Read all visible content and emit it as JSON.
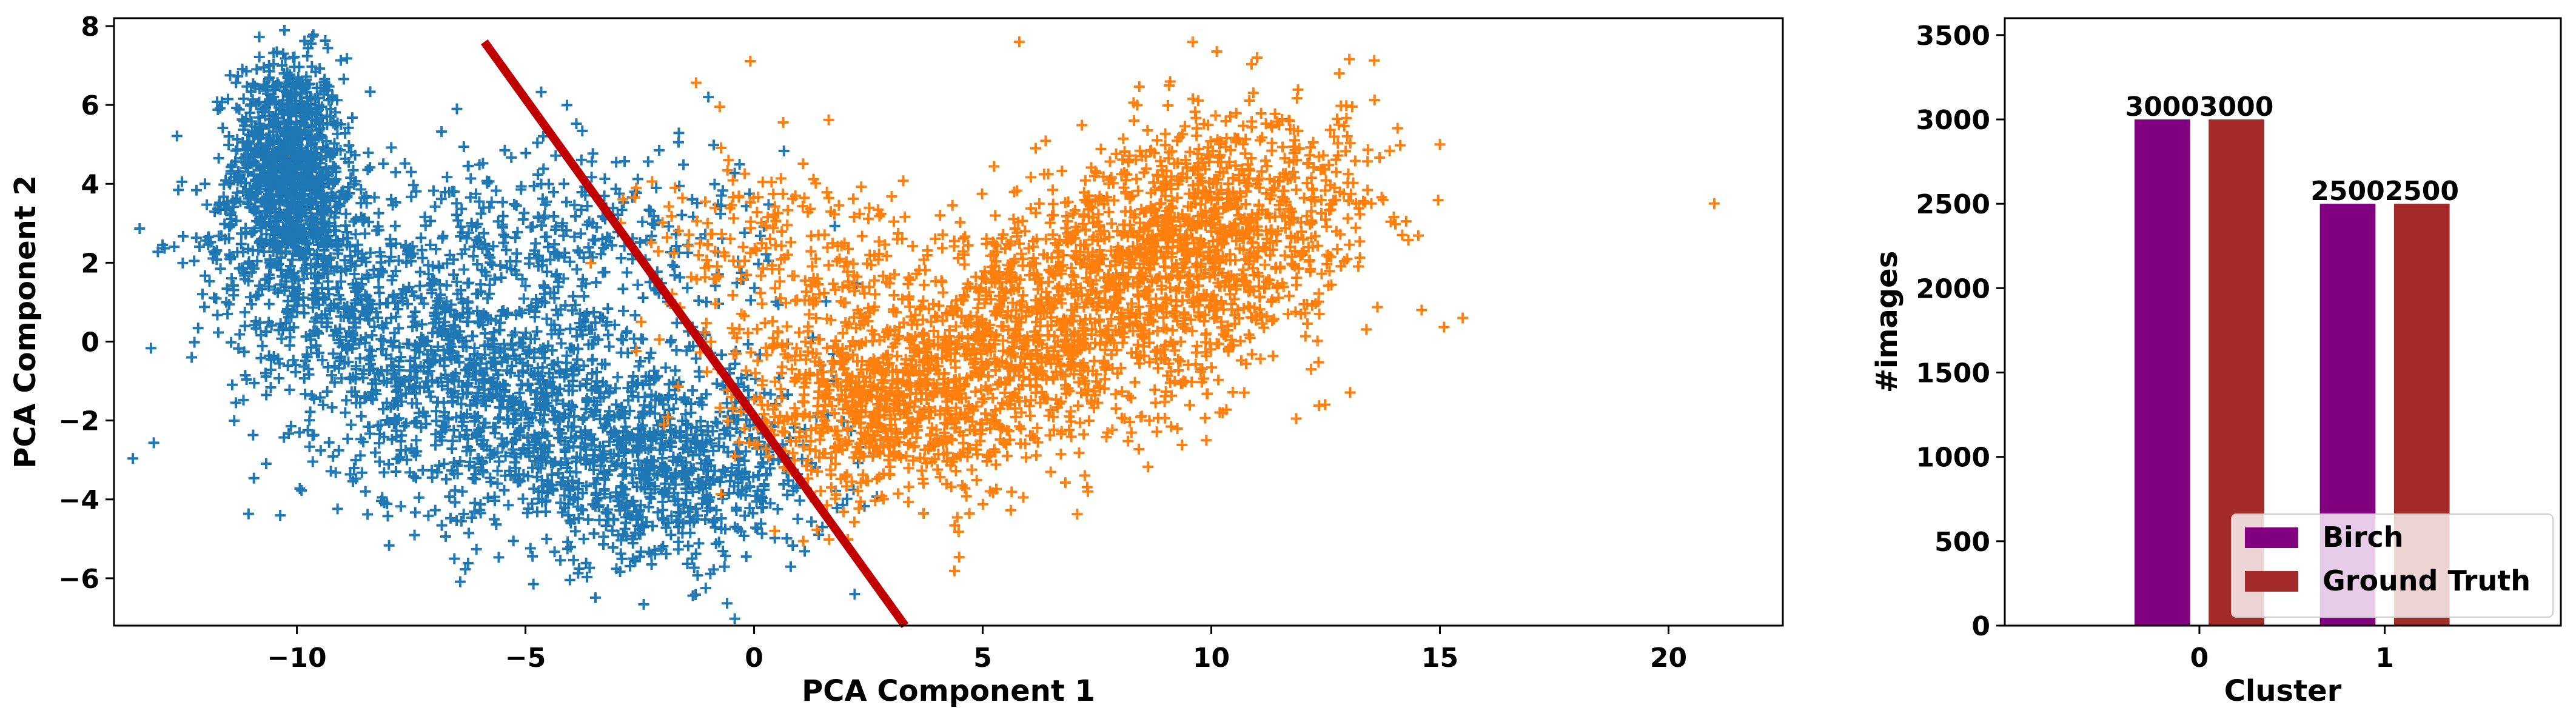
{
  "chart_data": [
    {
      "type": "scatter",
      "title": "",
      "xlabel": "PCA Component 1",
      "ylabel": "PCA Component 2",
      "xlim": [
        -14,
        22.5
      ],
      "ylim": [
        -7.2,
        8.2
      ],
      "xticks": [
        -10,
        -5,
        0,
        5,
        10,
        15,
        20
      ],
      "yticks": [
        -6,
        -4,
        -2,
        0,
        2,
        4,
        6,
        8
      ],
      "grid": false,
      "marker": "+",
      "series": [
        {
          "color": "#1f77b4",
          "clusters": [
            {
              "cx": -10.2,
              "cy": 4.6,
              "sx": 0.6,
              "sy": 1.3,
              "n": 900
            },
            {
              "cx": -10.0,
              "cy": 2.6,
              "sx": 1.1,
              "sy": 1.1,
              "n": 350
            },
            {
              "cx": -7.8,
              "cy": 0.2,
              "sx": 1.8,
              "sy": 1.5,
              "n": 650
            },
            {
              "cx": -5.0,
              "cy": -1.8,
              "sx": 2.0,
              "sy": 1.5,
              "n": 650
            },
            {
              "cx": -2.0,
              "cy": -3.3,
              "sx": 1.8,
              "sy": 1.2,
              "n": 750
            },
            {
              "cx": -4.0,
              "cy": 2.6,
              "sx": 2.2,
              "sy": 1.4,
              "n": 350
            }
          ],
          "outliers": [
            [
              -12.3,
              -0.4
            ],
            [
              -6.5,
              5.9
            ],
            [
              -1.0,
              6.2
            ],
            [
              -10.3,
              7.3
            ],
            [
              -8.5,
              -3.8
            ],
            [
              2.2,
              -6.4
            ]
          ]
        },
        {
          "color": "#ff7f0e",
          "clusters": [
            {
              "cx": 9.3,
              "cy": 2.2,
              "sx": 1.6,
              "sy": 1.4,
              "n": 900
            },
            {
              "cx": 5.8,
              "cy": 0.2,
              "sx": 1.9,
              "sy": 1.6,
              "n": 900
            },
            {
              "cx": 2.8,
              "cy": -1.7,
              "sx": 1.6,
              "sy": 1.2,
              "n": 700
            },
            {
              "cx": 0.6,
              "cy": 2.2,
              "sx": 1.6,
              "sy": 1.3,
              "n": 220
            },
            {
              "cx": 11.3,
              "cy": 3.8,
              "sx": 1.4,
              "sy": 1.2,
              "n": 300
            }
          ],
          "outliers": [
            [
              21.0,
              3.5
            ],
            [
              5.8,
              7.6
            ],
            [
              15.5,
              0.6
            ],
            [
              15.0,
              5.0
            ],
            [
              14.6,
              0.8
            ],
            [
              11.0,
              7.2
            ],
            [
              12.8,
              6.8
            ],
            [
              9.2,
              -1.0
            ],
            [
              7.3,
              -3.8
            ],
            [
              13.5,
              3.5
            ]
          ]
        }
      ],
      "boundary": {
        "color": "#c00000",
        "points": [
          [
            -5.9,
            7.6
          ],
          [
            3.3,
            -7.2
          ]
        ]
      }
    },
    {
      "type": "bar",
      "title": "",
      "xlabel": "Cluster",
      "ylabel": "#images",
      "categories": [
        "0",
        "1"
      ],
      "ylim": [
        0,
        3600
      ],
      "yticks": [
        0,
        500,
        1000,
        1500,
        2000,
        2500,
        3000,
        3500
      ],
      "grid": false,
      "legend_position": "lower-right",
      "series": [
        {
          "name": "Birch",
          "color": "#800080",
          "values": [
            3000,
            2500
          ]
        },
        {
          "name": "Ground Truth",
          "color": "#a52a2a",
          "values": [
            3000,
            2500
          ]
        }
      ],
      "data_labels": [
        "3000",
        "3000",
        "2500",
        "2500"
      ]
    }
  ]
}
